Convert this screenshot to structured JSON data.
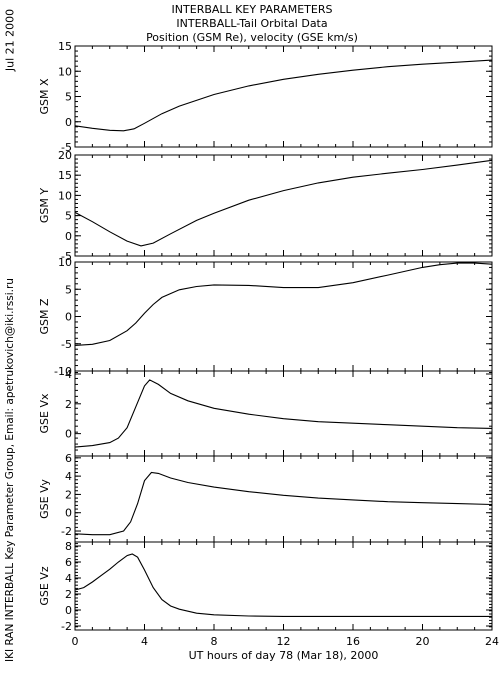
{
  "header": {
    "line1": "INTERBALL KEY PARAMETERS",
    "line2": "INTERBALL-Tail Orbital Data",
    "line3": "Position (GSM Re), velocity (GSE km/s)"
  },
  "side": {
    "date": "Jul 21 2000",
    "credit": "IKI RAN INTERBALL Key Parameter Group, Email: apetrukovich@iki.rssi.ru"
  },
  "chart_data": {
    "type": "line",
    "xlabel": "UT hours of day  78 (Mar 18), 2000",
    "xlim": [
      0,
      24
    ],
    "xticks": [
      0,
      4,
      8,
      12,
      16,
      20,
      24
    ],
    "panels": [
      {
        "ylabel": "GSM X",
        "ylim": [
          -5,
          15
        ],
        "yticks": [
          -5,
          0,
          5,
          10,
          15
        ],
        "x": [
          0,
          1,
          2,
          2.8,
          3.4,
          4,
          5,
          6,
          8,
          10,
          12,
          14,
          16,
          18,
          20,
          22,
          24
        ],
        "y": [
          -0.8,
          -1.3,
          -1.7,
          -1.8,
          -1.4,
          -0.3,
          1.6,
          3.1,
          5.4,
          7.1,
          8.4,
          9.4,
          10.2,
          10.9,
          11.4,
          11.8,
          12.2
        ]
      },
      {
        "ylabel": "GSM Y",
        "ylim": [
          -5,
          20
        ],
        "yticks": [
          -5,
          0,
          5,
          10,
          15,
          20
        ],
        "x": [
          0,
          1,
          2,
          3,
          3.8,
          4.5,
          5.5,
          7,
          8,
          10,
          12,
          14,
          16,
          18,
          20,
          22,
          24
        ],
        "y": [
          5.8,
          3.5,
          1.0,
          -1.3,
          -2.5,
          -1.8,
          0.5,
          3.8,
          5.6,
          8.8,
          11.2,
          13.1,
          14.5,
          15.5,
          16.4,
          17.5,
          18.7
        ]
      },
      {
        "ylabel": "GSM Z",
        "ylim": [
          -10,
          10
        ],
        "yticks": [
          -10,
          -5,
          0,
          5,
          10
        ],
        "x": [
          0,
          1,
          2,
          3,
          3.5,
          4,
          4.5,
          5,
          6,
          7,
          8,
          10,
          12,
          14,
          16,
          18,
          20,
          21,
          22,
          23,
          24
        ],
        "y": [
          -5.3,
          -5.1,
          -4.4,
          -2.6,
          -1.2,
          0.6,
          2.2,
          3.5,
          4.9,
          5.5,
          5.8,
          5.7,
          5.3,
          5.3,
          6.2,
          7.6,
          9.0,
          9.5,
          9.8,
          9.8,
          9.6
        ]
      },
      {
        "ylabel": "GSE Vx",
        "ylim": [
          -1.5,
          4.2
        ],
        "yticks": [
          0,
          2,
          4
        ],
        "x": [
          0,
          1,
          2,
          2.5,
          3,
          3.5,
          4,
          4.3,
          4.8,
          5.5,
          6.5,
          8,
          10,
          12,
          14,
          16,
          18,
          20,
          22,
          24
        ],
        "y": [
          -0.9,
          -0.8,
          -0.6,
          -0.3,
          0.4,
          1.8,
          3.2,
          3.6,
          3.3,
          2.7,
          2.2,
          1.7,
          1.3,
          1.0,
          0.8,
          0.7,
          0.6,
          0.5,
          0.4,
          0.35
        ]
      },
      {
        "ylabel": "GSE Vy",
        "ylim": [
          -3.2,
          6.2
        ],
        "yticks": [
          -2,
          0,
          2,
          4,
          6
        ],
        "x": [
          0,
          1,
          2,
          2.8,
          3.2,
          3.6,
          4,
          4.4,
          4.8,
          5.5,
          6.5,
          8,
          10,
          12,
          14,
          16,
          18,
          20,
          22,
          24
        ],
        "y": [
          -2.3,
          -2.4,
          -2.4,
          -2.0,
          -1.0,
          1.0,
          3.5,
          4.4,
          4.3,
          3.8,
          3.3,
          2.8,
          2.3,
          1.9,
          1.6,
          1.4,
          1.2,
          1.1,
          1.0,
          0.9
        ]
      },
      {
        "ylabel": "GSE Vz",
        "ylim": [
          -2.5,
          8.5
        ],
        "yticks": [
          -2,
          0,
          2,
          4,
          6,
          8
        ],
        "x": [
          0,
          0.5,
          1,
          1.5,
          2,
          2.5,
          3,
          3.3,
          3.6,
          4,
          4.5,
          5,
          5.5,
          6,
          7,
          8,
          10,
          12,
          16,
          20,
          24
        ],
        "y": [
          2.5,
          2.8,
          3.5,
          4.3,
          5.1,
          6.0,
          6.8,
          7.0,
          6.6,
          5.0,
          2.8,
          1.3,
          0.5,
          0.1,
          -0.4,
          -0.6,
          -0.75,
          -0.8,
          -0.8,
          -0.8,
          -0.8
        ]
      }
    ]
  }
}
